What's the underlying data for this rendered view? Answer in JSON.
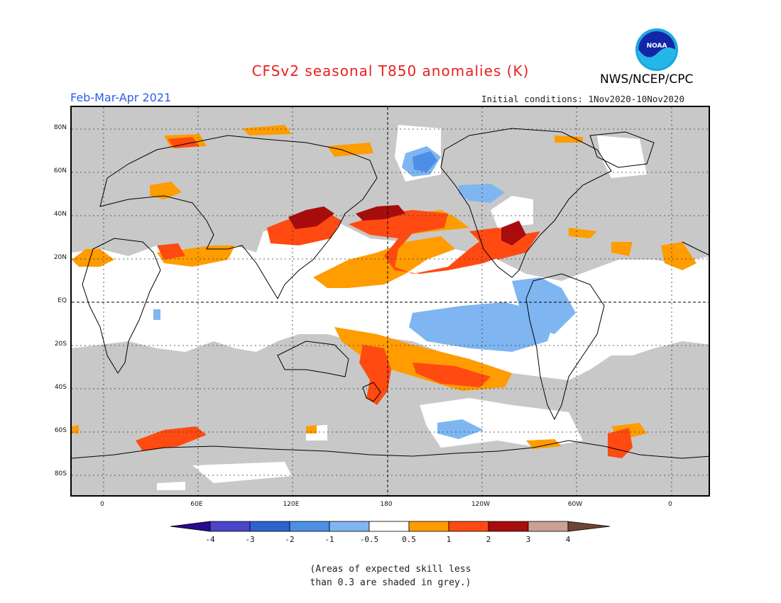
{
  "title": "CFSv2 seasonal T850 anomalies (K)",
  "period": "Feb-Mar-Apr 2021",
  "initial_conditions": "Initial conditions: 1Nov2020-10Nov2020",
  "agency": "NWS/NCEP/CPC",
  "logo_text": "NOAA",
  "lat_labels": [
    "80N",
    "60N",
    "40N",
    "20N",
    "EQ",
    "20S",
    "40S",
    "60S",
    "80S"
  ],
  "lon_labels": [
    "0",
    "60E",
    "120E",
    "180",
    "120W",
    "60W",
    "0"
  ],
  "colorbar": {
    "labels": [
      "-4",
      "-3",
      "-2",
      "-1",
      "-0.5",
      "0.5",
      "1",
      "2",
      "3",
      "4"
    ],
    "colors": [
      "#2a0a8c",
      "#4b45c9",
      "#2d63cf",
      "#4d8fe6",
      "#7fb6f2",
      "#ffffff",
      "#ff9c00",
      "#ff4a12",
      "#a80c0c",
      "#c9a293",
      "#6e4435"
    ]
  },
  "note_line1": "(Areas of expected skill less",
  "note_line2": "than 0.3 are shaded in grey.)"
}
